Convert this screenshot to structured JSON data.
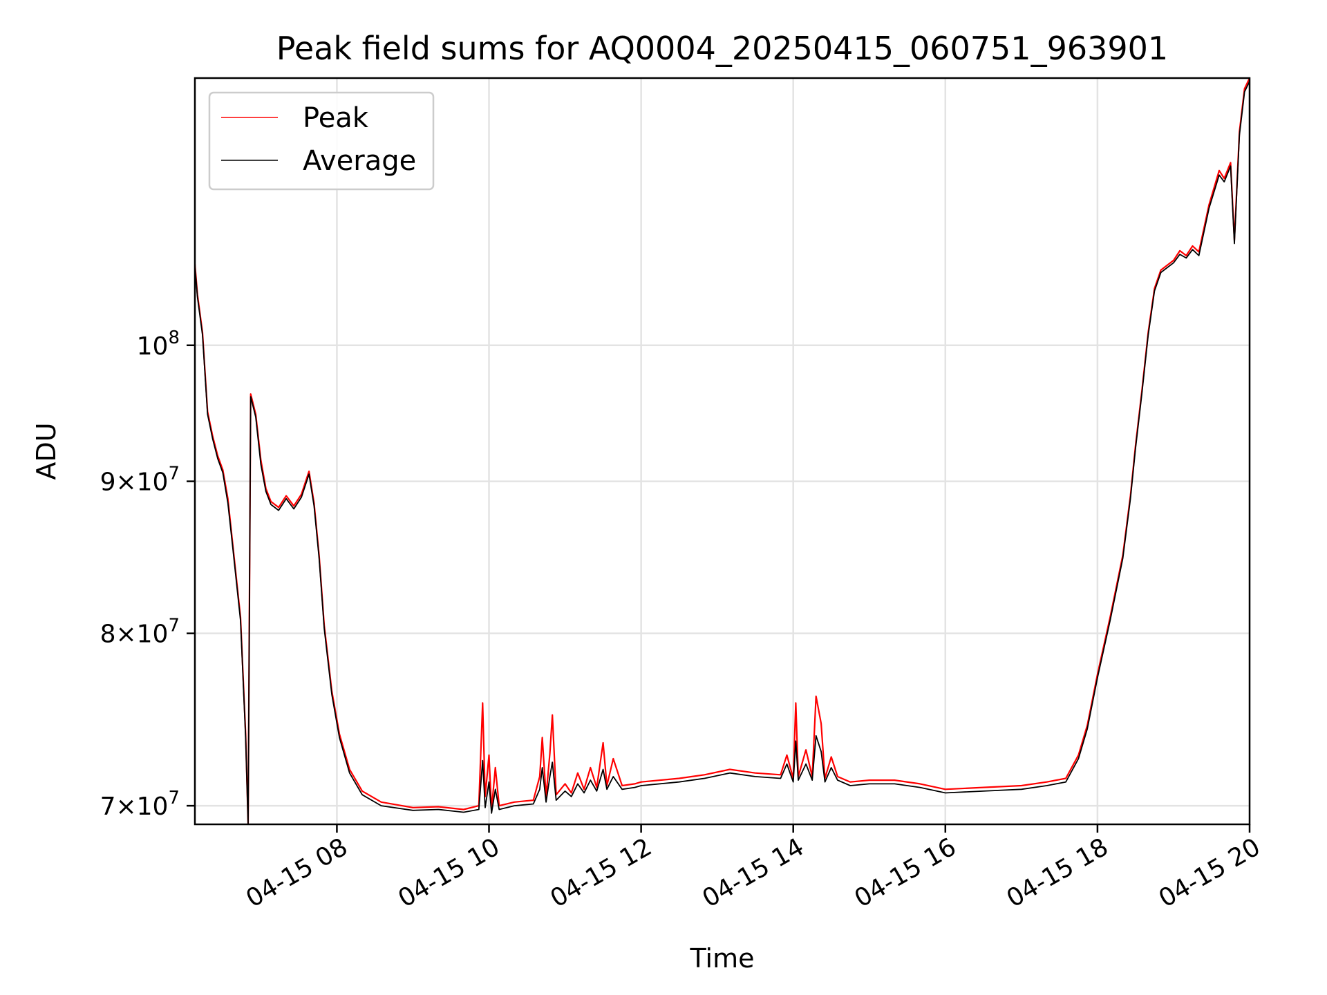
{
  "chart_data": {
    "type": "line",
    "title": "Peak field sums for AQ0004_20250415_060751_963901",
    "xlabel": "Time",
    "ylabel": "ADU",
    "x_scale": "time",
    "y_scale": "log",
    "xlim": [
      "2025-04-15T06:08",
      "2025-04-15T20:00"
    ],
    "ylim": [
      69000000,
      123000000
    ],
    "grid": true,
    "legend_position": "upper-left",
    "x_ticks": [
      {
        "value": "2025-04-15T08:00",
        "label": "04-15 08"
      },
      {
        "value": "2025-04-15T10:00",
        "label": "04-15 10"
      },
      {
        "value": "2025-04-15T12:00",
        "label": "04-15 12"
      },
      {
        "value": "2025-04-15T14:00",
        "label": "04-15 14"
      },
      {
        "value": "2025-04-15T16:00",
        "label": "04-15 16"
      },
      {
        "value": "2025-04-15T18:00",
        "label": "04-15 18"
      },
      {
        "value": "2025-04-15T20:00",
        "label": "04-15 20"
      }
    ],
    "y_ticks": [
      {
        "value": 70000000,
        "mantissa": "7",
        "exponent": "7"
      },
      {
        "value": 80000000,
        "mantissa": "8",
        "exponent": "7"
      },
      {
        "value": 90000000,
        "mantissa": "9",
        "exponent": "7"
      },
      {
        "value": 100000000,
        "mantissa": "",
        "exponent": "8"
      }
    ],
    "series": [
      {
        "name": "Peak",
        "color": "#ff0000",
        "points": [
          [
            "06:08",
            106500000
          ],
          [
            "06:10",
            104000000
          ],
          [
            "06:14",
            101000000
          ],
          [
            "06:18",
            95000000
          ],
          [
            "06:22",
            93200000
          ],
          [
            "06:26",
            91800000
          ],
          [
            "06:30",
            90800000
          ],
          [
            "06:34",
            88800000
          ],
          [
            "06:38",
            85600000
          ],
          [
            "06:44",
            81000000
          ],
          [
            "06:48",
            74000000
          ],
          [
            "06:50",
            69000000
          ],
          [
            "06:52",
            96300000
          ],
          [
            "06:56",
            94800000
          ],
          [
            "07:00",
            91500000
          ],
          [
            "07:04",
            89500000
          ],
          [
            "07:08",
            88600000
          ],
          [
            "07:14",
            88200000
          ],
          [
            "07:20",
            89000000
          ],
          [
            "07:26",
            88300000
          ],
          [
            "07:32",
            89100000
          ],
          [
            "07:38",
            90700000
          ],
          [
            "07:42",
            88500000
          ],
          [
            "07:46",
            85000000
          ],
          [
            "07:50",
            80500000
          ],
          [
            "07:56",
            76500000
          ],
          [
            "08:02",
            74000000
          ],
          [
            "08:10",
            72000000
          ],
          [
            "08:20",
            70800000
          ],
          [
            "08:35",
            70200000
          ],
          [
            "09:00",
            69900000
          ],
          [
            "09:20",
            69950000
          ],
          [
            "09:40",
            69800000
          ],
          [
            "09:52",
            70000000
          ],
          [
            "09:55",
            75800000
          ],
          [
            "09:57",
            70500000
          ],
          [
            "10:00",
            72800000
          ],
          [
            "10:02",
            69800000
          ],
          [
            "10:05",
            72100000
          ],
          [
            "10:08",
            70000000
          ],
          [
            "10:20",
            70200000
          ],
          [
            "10:35",
            70300000
          ],
          [
            "10:40",
            71600000
          ],
          [
            "10:42",
            73800000
          ],
          [
            "10:45",
            70500000
          ],
          [
            "10:48",
            72900000
          ],
          [
            "10:50",
            75100000
          ],
          [
            "10:53",
            70600000
          ],
          [
            "11:00",
            71200000
          ],
          [
            "11:05",
            70700000
          ],
          [
            "11:10",
            71800000
          ],
          [
            "11:15",
            70900000
          ],
          [
            "11:20",
            72100000
          ],
          [
            "11:25",
            71000000
          ],
          [
            "11:30",
            73500000
          ],
          [
            "11:33",
            71100000
          ],
          [
            "11:38",
            72600000
          ],
          [
            "11:45",
            71100000
          ],
          [
            "11:55",
            71200000
          ],
          [
            "12:00",
            71300000
          ],
          [
            "12:30",
            71500000
          ],
          [
            "12:50",
            71700000
          ],
          [
            "13:10",
            72000000
          ],
          [
            "13:30",
            71800000
          ],
          [
            "13:50",
            71700000
          ],
          [
            "13:55",
            72800000
          ],
          [
            "14:00",
            71500000
          ],
          [
            "14:02",
            75800000
          ],
          [
            "14:04",
            71600000
          ],
          [
            "14:10",
            73100000
          ],
          [
            "14:15",
            71600000
          ],
          [
            "14:18",
            76200000
          ],
          [
            "14:22",
            74600000
          ],
          [
            "14:25",
            71500000
          ],
          [
            "14:30",
            72700000
          ],
          [
            "14:35",
            71600000
          ],
          [
            "14:45",
            71300000
          ],
          [
            "15:00",
            71400000
          ],
          [
            "15:20",
            71400000
          ],
          [
            "15:40",
            71200000
          ],
          [
            "16:00",
            70900000
          ],
          [
            "16:30",
            71000000
          ],
          [
            "17:00",
            71100000
          ],
          [
            "17:20",
            71300000
          ],
          [
            "17:35",
            71500000
          ],
          [
            "17:45",
            72800000
          ],
          [
            "17:52",
            74500000
          ],
          [
            "18:00",
            77500000
          ],
          [
            "18:10",
            81000000
          ],
          [
            "18:20",
            85000000
          ],
          [
            "18:26",
            89000000
          ],
          [
            "18:30",
            92500000
          ],
          [
            "18:35",
            96500000
          ],
          [
            "18:40",
            101000000
          ],
          [
            "18:45",
            104500000
          ],
          [
            "18:50",
            106000000
          ],
          [
            "19:00",
            106800000
          ],
          [
            "19:05",
            107600000
          ],
          [
            "19:10",
            107200000
          ],
          [
            "19:15",
            108000000
          ],
          [
            "19:20",
            107500000
          ],
          [
            "19:28",
            111500000
          ],
          [
            "19:36",
            114500000
          ],
          [
            "19:40",
            113800000
          ],
          [
            "19:45",
            115200000
          ],
          [
            "19:48",
            108500000
          ],
          [
            "19:52",
            118000000
          ],
          [
            "19:56",
            122000000
          ],
          [
            "20:00",
            123000000
          ]
        ]
      },
      {
        "name": "Average",
        "color": "#000000",
        "points": [
          [
            "06:08",
            106300000
          ],
          [
            "06:10",
            103800000
          ],
          [
            "06:14",
            100800000
          ],
          [
            "06:18",
            94800000
          ],
          [
            "06:22",
            93000000
          ],
          [
            "06:26",
            91600000
          ],
          [
            "06:30",
            90600000
          ],
          [
            "06:34",
            88500000
          ],
          [
            "06:38",
            85400000
          ],
          [
            "06:44",
            80800000
          ],
          [
            "06:48",
            73800000
          ],
          [
            "06:50",
            69000000
          ],
          [
            "06:52",
            96100000
          ],
          [
            "06:56",
            94600000
          ],
          [
            "07:00",
            91200000
          ],
          [
            "07:04",
            89300000
          ],
          [
            "07:08",
            88400000
          ],
          [
            "07:14",
            88000000
          ],
          [
            "07:20",
            88800000
          ],
          [
            "07:26",
            88100000
          ],
          [
            "07:32",
            88900000
          ],
          [
            "07:38",
            90500000
          ],
          [
            "07:42",
            88300000
          ],
          [
            "07:46",
            84800000
          ],
          [
            "07:50",
            80300000
          ],
          [
            "07:56",
            76300000
          ],
          [
            "08:02",
            73800000
          ],
          [
            "08:10",
            71800000
          ],
          [
            "08:20",
            70600000
          ],
          [
            "08:35",
            70000000
          ],
          [
            "09:00",
            69750000
          ],
          [
            "09:20",
            69800000
          ],
          [
            "09:40",
            69650000
          ],
          [
            "09:52",
            69800000
          ],
          [
            "09:55",
            72500000
          ],
          [
            "09:57",
            69900000
          ],
          [
            "10:00",
            71300000
          ],
          [
            "10:02",
            69600000
          ],
          [
            "10:05",
            70900000
          ],
          [
            "10:08",
            69800000
          ],
          [
            "10:20",
            70000000
          ],
          [
            "10:35",
            70100000
          ],
          [
            "10:40",
            70900000
          ],
          [
            "10:42",
            72100000
          ],
          [
            "10:45",
            70200000
          ],
          [
            "10:48",
            71600000
          ],
          [
            "10:50",
            72400000
          ],
          [
            "10:53",
            70300000
          ],
          [
            "11:00",
            70800000
          ],
          [
            "11:05",
            70500000
          ],
          [
            "11:10",
            71200000
          ],
          [
            "11:15",
            70700000
          ],
          [
            "11:20",
            71400000
          ],
          [
            "11:25",
            70800000
          ],
          [
            "11:30",
            72000000
          ],
          [
            "11:33",
            70900000
          ],
          [
            "11:38",
            71600000
          ],
          [
            "11:45",
            70900000
          ],
          [
            "11:55",
            71000000
          ],
          [
            "12:00",
            71100000
          ],
          [
            "12:30",
            71300000
          ],
          [
            "12:50",
            71500000
          ],
          [
            "13:10",
            71800000
          ],
          [
            "13:30",
            71600000
          ],
          [
            "13:50",
            71500000
          ],
          [
            "13:55",
            72300000
          ],
          [
            "14:00",
            71300000
          ],
          [
            "14:02",
            73600000
          ],
          [
            "14:04",
            71400000
          ],
          [
            "14:10",
            72300000
          ],
          [
            "14:15",
            71400000
          ],
          [
            "14:18",
            73900000
          ],
          [
            "14:22",
            73000000
          ],
          [
            "14:25",
            71300000
          ],
          [
            "14:30",
            72100000
          ],
          [
            "14:35",
            71400000
          ],
          [
            "14:45",
            71100000
          ],
          [
            "15:00",
            71200000
          ],
          [
            "15:20",
            71200000
          ],
          [
            "15:40",
            71000000
          ],
          [
            "16:00",
            70700000
          ],
          [
            "16:30",
            70800000
          ],
          [
            "17:00",
            70900000
          ],
          [
            "17:20",
            71100000
          ],
          [
            "17:35",
            71300000
          ],
          [
            "17:45",
            72600000
          ],
          [
            "17:52",
            74300000
          ],
          [
            "18:00",
            77300000
          ],
          [
            "18:10",
            80800000
          ],
          [
            "18:20",
            84800000
          ],
          [
            "18:26",
            88800000
          ],
          [
            "18:30",
            92300000
          ],
          [
            "18:35",
            96300000
          ],
          [
            "18:40",
            100800000
          ],
          [
            "18:45",
            104300000
          ],
          [
            "18:50",
            105800000
          ],
          [
            "19:00",
            106600000
          ],
          [
            "19:05",
            107300000
          ],
          [
            "19:10",
            107000000
          ],
          [
            "19:15",
            107700000
          ],
          [
            "19:20",
            107200000
          ],
          [
            "19:28",
            111200000
          ],
          [
            "19:36",
            114100000
          ],
          [
            "19:40",
            113500000
          ],
          [
            "19:45",
            114900000
          ],
          [
            "19:48",
            108200000
          ],
          [
            "19:52",
            117700000
          ],
          [
            "19:56",
            121700000
          ],
          [
            "20:00",
            122700000
          ]
        ]
      }
    ]
  }
}
